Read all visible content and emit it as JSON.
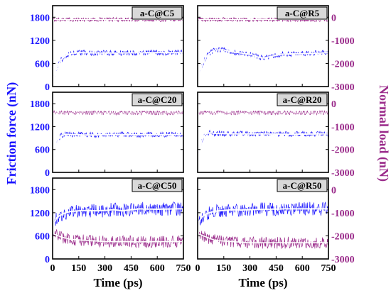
{
  "colors": {
    "friction": "#1a14ff",
    "load": "#9a2a8a",
    "friction_mean": "#ffffff",
    "load_mean": "#ffffff",
    "axis": "#000000",
    "label_box": "#d9d9d9"
  },
  "axes": {
    "xlabel": "Time (ps)",
    "ylabel_left": "Friction force (nN)",
    "ylabel_right": "Normal load (nN)",
    "x_ticks": [
      "0",
      "150",
      "300",
      "450",
      "600",
      "750"
    ],
    "left_ticks": [
      "0",
      "600",
      "1200",
      "1800"
    ],
    "right_ticks": [
      "0",
      "-1000",
      "-2000",
      "-3000"
    ]
  },
  "chart_data": {
    "type": "line",
    "xlim": [
      0,
      750
    ],
    "ylim_left": [
      0,
      2100
    ],
    "ylim_right": [
      -3000,
      500
    ],
    "panels": [
      {
        "label": "a-C@C5",
        "friction": {
          "name": "Friction force",
          "x": [
            0,
            10,
            25,
            50,
            75,
            100,
            150,
            300,
            450,
            600,
            750
          ],
          "y": [
            0,
            280,
            500,
            700,
            800,
            860,
            880,
            870,
            875,
            880,
            880
          ]
        },
        "load": {
          "name": "Normal load",
          "x": [
            0,
            150,
            300,
            450,
            600,
            750
          ],
          "y": [
            -100,
            -100,
            -100,
            -100,
            -100,
            -100
          ]
        }
      },
      {
        "label": "a-C@R5",
        "friction": {
          "name": "Friction force",
          "x": [
            0,
            10,
            25,
            50,
            75,
            100,
            150,
            200,
            250,
            300,
            350,
            380,
            420,
            480,
            550,
            650,
            750
          ],
          "y": [
            0,
            300,
            550,
            780,
            880,
            950,
            950,
            900,
            870,
            840,
            760,
            740,
            780,
            840,
            850,
            860,
            880
          ]
        },
        "load": {
          "name": "Normal load",
          "x": [
            0,
            150,
            300,
            450,
            600,
            750
          ],
          "y": [
            -100,
            -100,
            -100,
            -100,
            -100,
            -100
          ]
        }
      },
      {
        "label": "a-C@C20",
        "friction": {
          "name": "Friction force",
          "x": [
            0,
            8,
            20,
            35,
            50,
            75,
            100,
            200,
            350,
            500,
            650,
            750
          ],
          "y": [
            0,
            400,
            700,
            880,
            960,
            1000,
            990,
            980,
            990,
            985,
            990,
            990
          ]
        },
        "load": {
          "name": "Normal load",
          "x": [
            0,
            150,
            300,
            450,
            600,
            750
          ],
          "y": [
            -400,
            -400,
            -400,
            -400,
            -400,
            -400
          ]
        }
      },
      {
        "label": "a-C@R20",
        "friction": {
          "name": "Friction force",
          "x": [
            0,
            8,
            20,
            35,
            50,
            75,
            100,
            200,
            350,
            500,
            650,
            750
          ],
          "y": [
            0,
            450,
            780,
            950,
            1020,
            1040,
            1020,
            1010,
            1010,
            1000,
            1005,
            1010
          ]
        },
        "load": {
          "name": "Normal load",
          "x": [
            0,
            150,
            300,
            450,
            600,
            750
          ],
          "y": [
            -400,
            -400,
            -400,
            -400,
            -400,
            -400
          ]
        }
      },
      {
        "label": "a-C@C50",
        "friction": {
          "name": "Friction force",
          "x": [
            0,
            10,
            25,
            50,
            75,
            100,
            150,
            200,
            250,
            300,
            350,
            400,
            450,
            500,
            600,
            700,
            750
          ],
          "y": [
            750,
            950,
            1080,
            1150,
            1200,
            1230,
            1250,
            1260,
            1250,
            1260,
            1280,
            1250,
            1280,
            1300,
            1290,
            1300,
            1300
          ]
        },
        "load": {
          "name": "Normal load",
          "x": [
            0,
            50,
            100,
            200,
            300,
            400,
            500,
            600,
            750
          ],
          "y": [
            -1900,
            -2050,
            -2150,
            -2200,
            -2250,
            -2250,
            -2260,
            -2250,
            -2250
          ]
        }
      },
      {
        "label": "a-C@R50",
        "friction": {
          "name": "Friction force",
          "x": [
            0,
            10,
            25,
            50,
            75,
            100,
            150,
            200,
            250,
            300,
            400,
            500,
            600,
            700,
            750
          ],
          "y": [
            800,
            980,
            1100,
            1170,
            1210,
            1240,
            1260,
            1280,
            1270,
            1280,
            1290,
            1300,
            1300,
            1300,
            1300
          ]
        },
        "load": {
          "name": "Normal load",
          "x": [
            0,
            50,
            100,
            200,
            300,
            400,
            500,
            600,
            750
          ],
          "y": [
            -1900,
            -2050,
            -2200,
            -2250,
            -2300,
            -2300,
            -2300,
            -2300,
            -2300
          ]
        }
      }
    ]
  }
}
